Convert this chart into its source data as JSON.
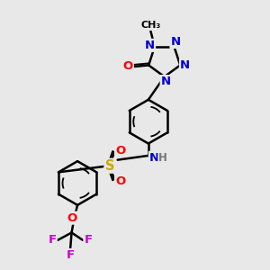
{
  "bg_color": "#e8e8e8",
  "bond_color": "#000000",
  "bond_width": 1.8,
  "atom_colors": {
    "N": "#0000cc",
    "O": "#ff0000",
    "S": "#ccaa00",
    "F": "#cc00cc",
    "H": "#777777",
    "C": "#000000"
  },
  "font_size": 9.5
}
